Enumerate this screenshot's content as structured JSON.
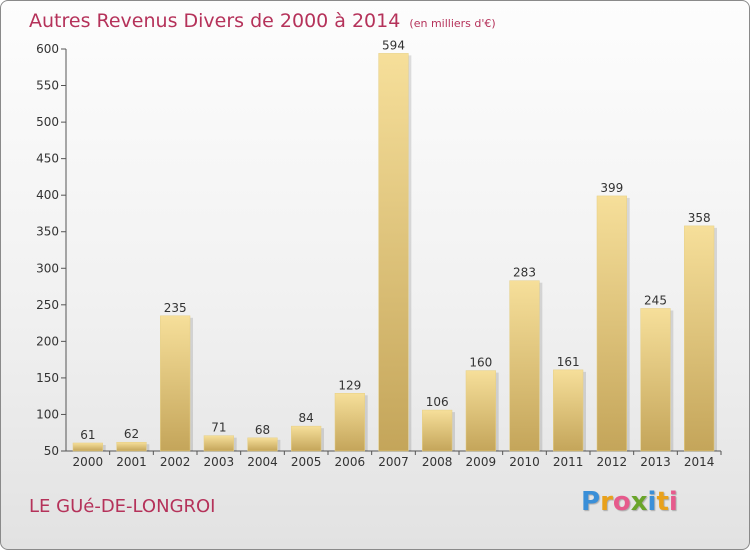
{
  "title": "Autres Revenus Divers de 2000 à 2014",
  "subtitle": "(en milliers d'€)",
  "commune": "LE GUé-DE-LONGROI",
  "logo": {
    "letters": [
      "P",
      "r",
      "o",
      "x",
      "i",
      "t",
      "i"
    ],
    "colors": [
      "#3a8fd8",
      "#e9a11b",
      "#e65a8c",
      "#6aa52a",
      "#3a8fd8",
      "#e9a11b",
      "#e65a8c"
    ]
  },
  "colors": {
    "bar_top": "#f6df9a",
    "bar_bottom": "#c4a55a",
    "title": "#b5325a"
  },
  "chart_data": {
    "type": "bar",
    "title": "Autres Revenus Divers de 2000 à 2014",
    "subtitle": "(en milliers d'€)",
    "categories": [
      "2000",
      "2001",
      "2002",
      "2003",
      "2004",
      "2005",
      "2006",
      "2007",
      "2008",
      "2009",
      "2010",
      "2011",
      "2012",
      "2013",
      "2014"
    ],
    "values": [
      61,
      62,
      235,
      71,
      68,
      84,
      129,
      594,
      106,
      160,
      283,
      161,
      399,
      245,
      358
    ],
    "ylim": [
      50,
      600
    ],
    "yticks": [
      50,
      100,
      150,
      200,
      250,
      300,
      350,
      400,
      450,
      500,
      550,
      600
    ],
    "grid": false,
    "data_labels": true
  }
}
